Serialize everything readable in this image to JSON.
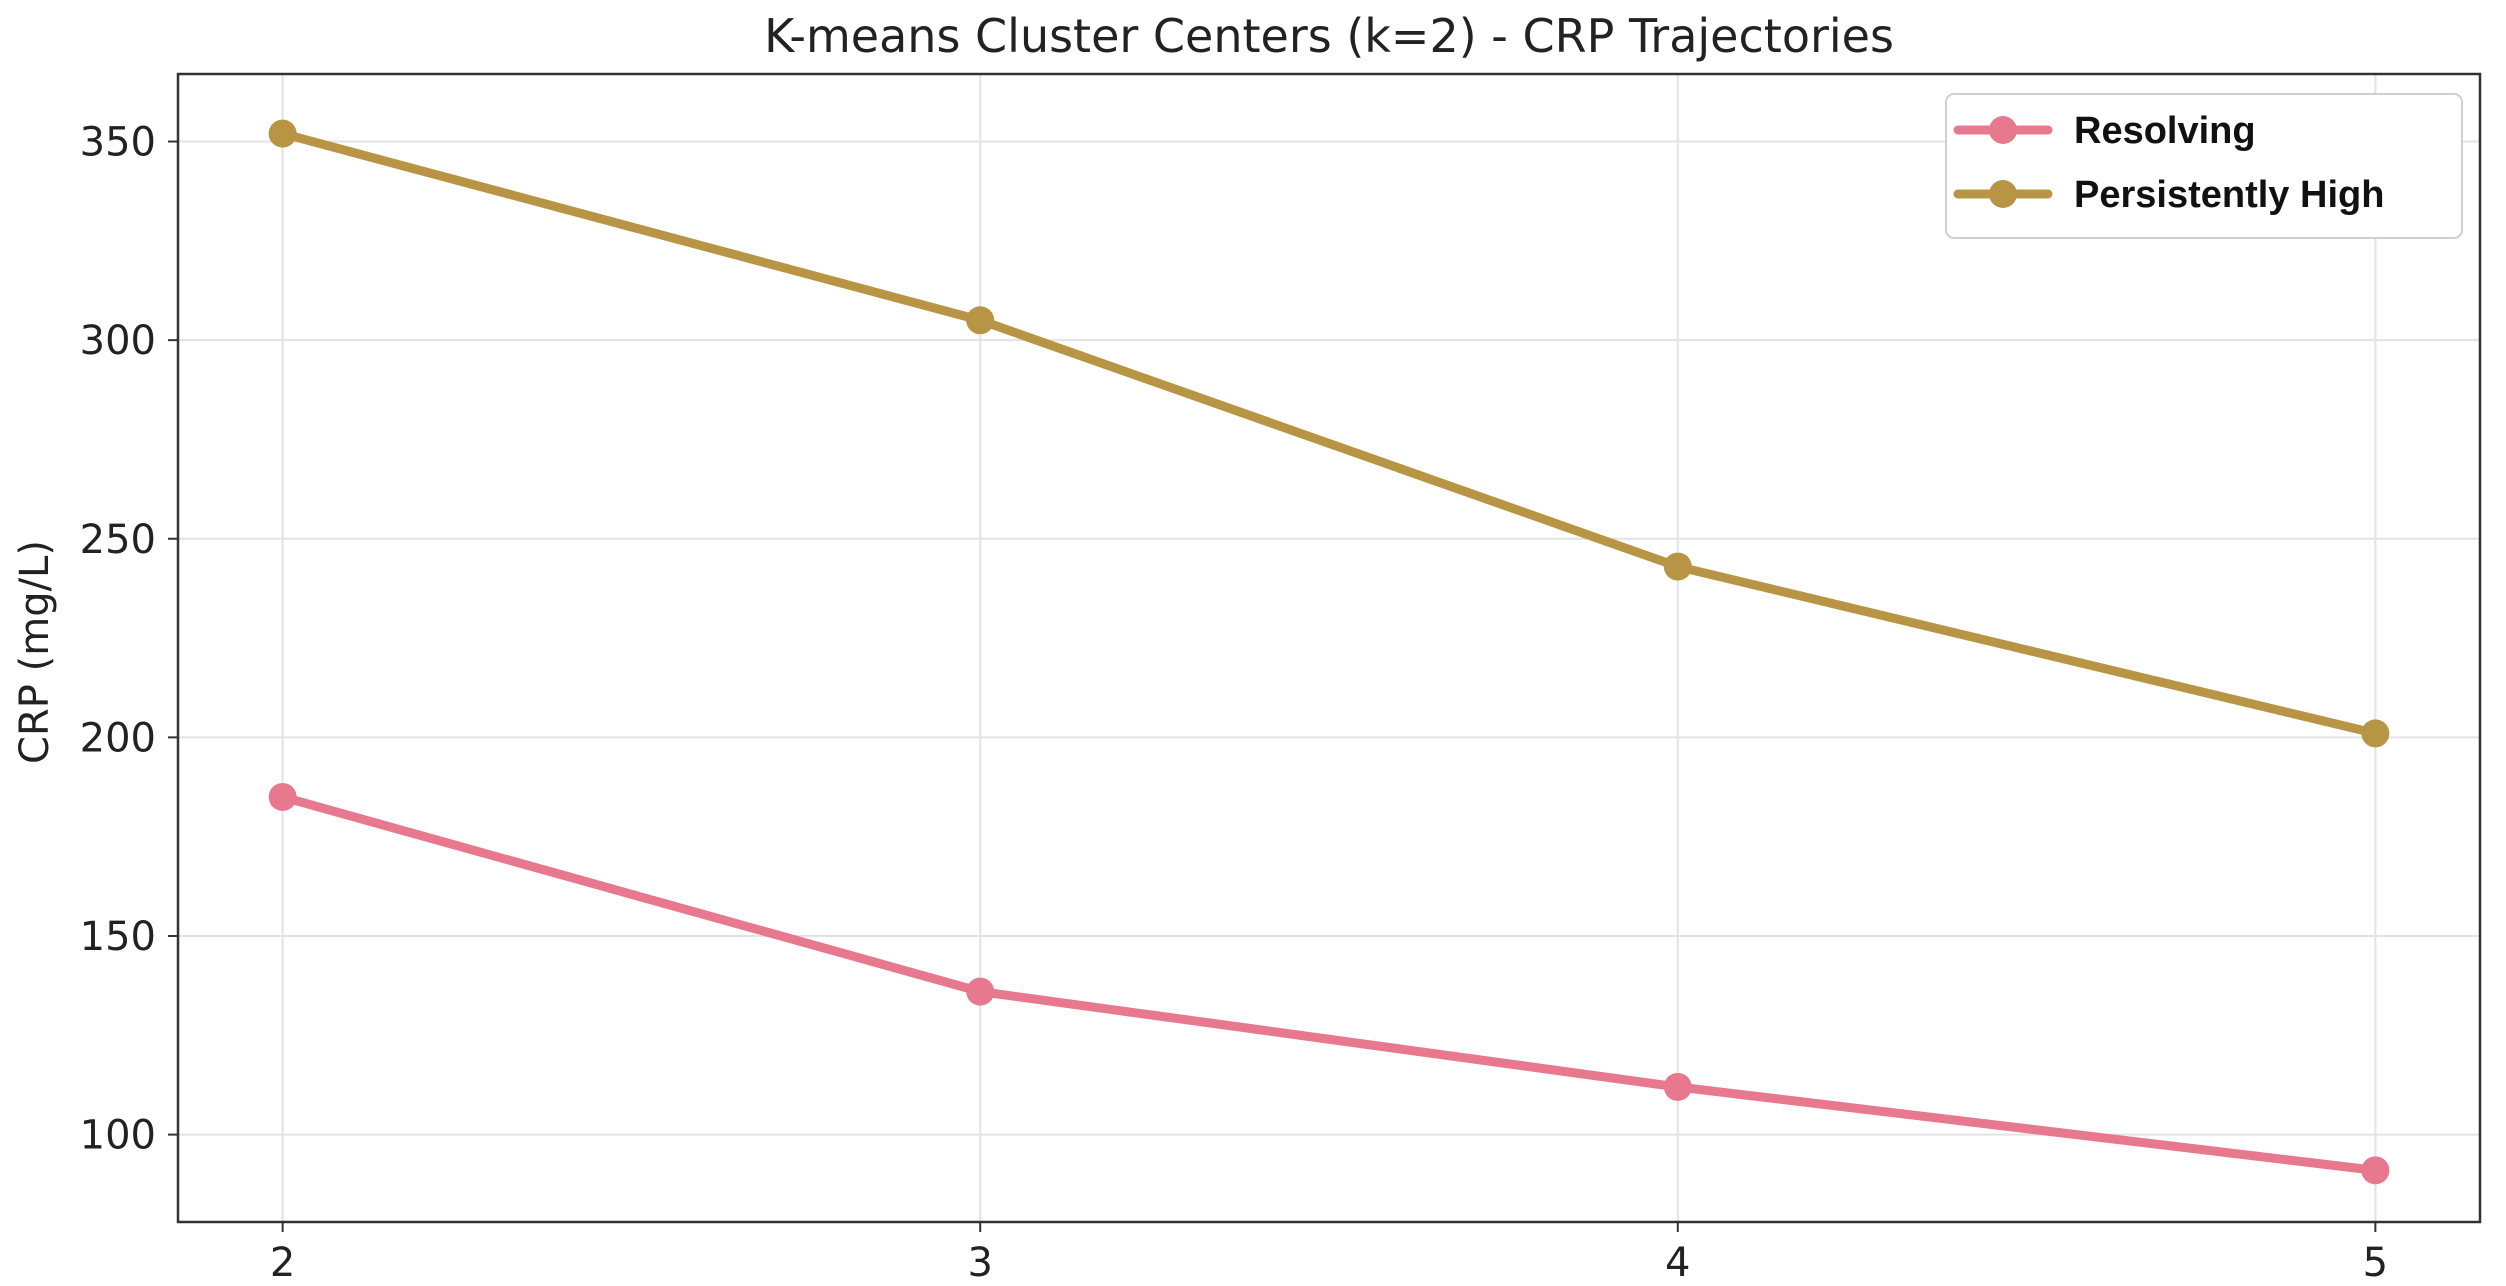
{
  "chart_data": {
    "type": "line",
    "title": "K-means Cluster Centers (k=2) - CRP Trajectories",
    "xlabel": "",
    "ylabel": "CRP (mg/L)",
    "x": [
      2,
      3,
      4,
      5
    ],
    "x_tick_labels": [
      "2",
      "3",
      "4",
      "5"
    ],
    "y_ticks": [
      100,
      150,
      200,
      250,
      300,
      350
    ],
    "y_tick_labels": [
      "100",
      "150",
      "200",
      "250",
      "300",
      "350"
    ],
    "xlim": [
      1.85,
      5.15
    ],
    "ylim": [
      78,
      367
    ],
    "grid": true,
    "legend_position": "top-right",
    "series": [
      {
        "name": "Resolving",
        "color": "#e8788d",
        "values": [
          185,
          136,
          112,
          91
        ]
      },
      {
        "name": "Persistently High",
        "color": "#b89545",
        "values": [
          352,
          305,
          243,
          201
        ]
      }
    ]
  }
}
